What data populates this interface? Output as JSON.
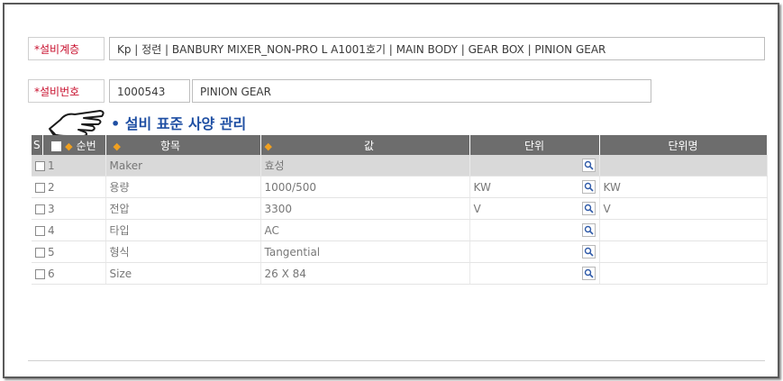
{
  "fields": {
    "class_label": "*설비계층",
    "class_value": "Kp | 정련 | BANBURY MIXER_NON-PRO L A1001호기  | MAIN BODY | GEAR BOX | PINION GEAR",
    "number_label": "*설비번호",
    "number_value": "1000543",
    "name_value": "PINION GEAR"
  },
  "section_title": "• 설비 표준 사양 관리",
  "columns": {
    "s": "S",
    "seq": "순번",
    "item": "항목",
    "value": "값",
    "unit": "단위",
    "unit_name": "단위명"
  },
  "rows": [
    {
      "seq": "1",
      "item": "Maker",
      "value": "효성",
      "unit": "",
      "unit_name": ""
    },
    {
      "seq": "2",
      "item": "용량",
      "value": "1000/500",
      "unit": "KW",
      "unit_name": "KW"
    },
    {
      "seq": "3",
      "item": "전압",
      "value": "3300",
      "unit": "V",
      "unit_name": "V"
    },
    {
      "seq": "4",
      "item": "타입",
      "value": "AC",
      "unit": "",
      "unit_name": ""
    },
    {
      "seq": "5",
      "item": "형식",
      "value": "Tangential",
      "unit": "",
      "unit_name": ""
    },
    {
      "seq": "6",
      "item": "Size",
      "value": "26 X 84",
      "unit": "",
      "unit_name": ""
    }
  ],
  "colors": {
    "label_red": "#c8102e",
    "title_blue": "#1f4fa3",
    "header_gray": "#6d6d6d",
    "star_orange": "#f0a020"
  }
}
